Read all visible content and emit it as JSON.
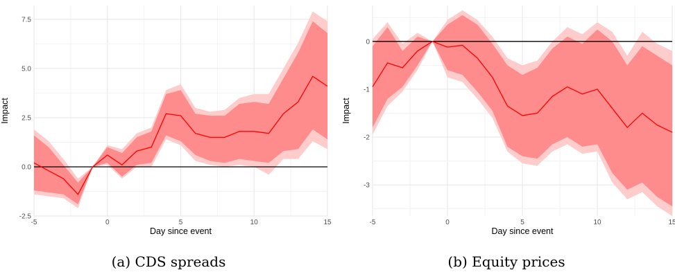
{
  "captions": {
    "a": "(a) CDS spreads",
    "b": "(b) Equity prices"
  },
  "colors": {
    "line": "#ff0000",
    "band_inner": "#ff8c8c",
    "band_outer": "#ffcccc",
    "zero_line": "#000000",
    "grid_major": "#e5e5e5",
    "grid_minor": "#f2f2f2"
  },
  "chart_data": [
    {
      "type": "area",
      "title": "",
      "caption": "(a) CDS spreads",
      "xlabel": "Day since event",
      "ylabel": "Impact",
      "xlim": [
        -5,
        15
      ],
      "ylim": [
        -2.5,
        8.2
      ],
      "xticks": [
        -5,
        0,
        5,
        10,
        15
      ],
      "xtick_labels": [
        "-5",
        "0",
        "5",
        "10",
        "15"
      ],
      "yticks": [
        -2.5,
        0,
        2.5,
        5,
        7.5
      ],
      "ytick_labels": [
        "-2.5",
        "0.0",
        "2.5",
        "5.0",
        "7.5"
      ],
      "reference_line": 0,
      "x": [
        -5,
        -4,
        -3,
        -2,
        -1,
        0,
        1,
        2,
        3,
        4,
        5,
        6,
        7,
        8,
        9,
        10,
        11,
        12,
        13,
        14,
        15
      ],
      "estimate": [
        0.2,
        -0.2,
        -0.6,
        -1.4,
        0.0,
        0.6,
        0.1,
        0.8,
        1.0,
        2.7,
        2.6,
        1.7,
        1.5,
        1.5,
        1.8,
        1.8,
        1.7,
        2.7,
        3.3,
        4.6,
        4.1
      ],
      "inner_band_upper": [
        1.6,
        1.0,
        0.1,
        -0.8,
        0.0,
        1.0,
        0.7,
        1.5,
        1.8,
        3.7,
        3.9,
        2.7,
        2.6,
        2.6,
        3.2,
        3.3,
        3.2,
        4.5,
        5.8,
        7.4,
        6.8
      ],
      "inner_band_lower": [
        -1.2,
        -1.3,
        -1.4,
        -1.9,
        0.0,
        0.2,
        -0.5,
        0.1,
        0.2,
        1.6,
        1.3,
        0.6,
        0.3,
        0.2,
        0.4,
        0.3,
        0.2,
        0.8,
        0.9,
        1.9,
        1.4
      ],
      "outer_band_upper": [
        1.9,
        1.3,
        0.4,
        -0.6,
        0.0,
        1.1,
        0.9,
        1.7,
        2.0,
        3.9,
        4.2,
        3.0,
        2.8,
        2.9,
        3.5,
        3.7,
        3.7,
        5.0,
        6.3,
        7.9,
        7.4
      ],
      "outer_band_lower": [
        -1.4,
        -1.5,
        -1.6,
        -2.1,
        0.0,
        0.1,
        -0.6,
        0.0,
        0.0,
        1.4,
        1.1,
        0.3,
        0.1,
        0.0,
        0.1,
        0.0,
        -0.4,
        0.4,
        0.4,
        1.3,
        0.9
      ]
    },
    {
      "type": "area",
      "title": "",
      "caption": "(b) Equity prices",
      "xlabel": "Day since event",
      "ylabel": "Impact",
      "xlim": [
        -5,
        15
      ],
      "ylim": [
        -3.65,
        0.75
      ],
      "xticks": [
        -5,
        0,
        5,
        10,
        15
      ],
      "xtick_labels": [
        "-5",
        "0",
        "5",
        "10",
        "15"
      ],
      "yticks": [
        -3,
        -2,
        -1,
        0
      ],
      "ytick_labels": [
        "-3",
        "-2",
        "-1",
        "0"
      ],
      "reference_line": 0,
      "x": [
        -5,
        -4,
        -3,
        -2,
        -1,
        0,
        1,
        2,
        3,
        4,
        5,
        6,
        7,
        8,
        9,
        10,
        11,
        12,
        13,
        14,
        15
      ],
      "estimate": [
        -0.95,
        -0.45,
        -0.55,
        -0.2,
        0.0,
        -0.12,
        -0.08,
        -0.35,
        -0.75,
        -1.35,
        -1.55,
        -1.5,
        -1.15,
        -0.95,
        -1.1,
        -1.0,
        -1.4,
        -1.8,
        -1.5,
        -1.75,
        -1.9
      ],
      "inner_band_upper": [
        -0.1,
        0.3,
        -0.2,
        0.1,
        0.0,
        0.35,
        0.55,
        0.35,
        -0.05,
        -0.5,
        -0.7,
        -0.55,
        -0.15,
        0.1,
        -0.05,
        0.25,
        0.0,
        -0.5,
        -0.1,
        -0.3,
        -0.5
      ],
      "inner_band_lower": [
        -1.8,
        -1.2,
        -0.95,
        -0.5,
        0.0,
        -0.6,
        -0.7,
        -1.05,
        -1.45,
        -2.2,
        -2.4,
        -2.45,
        -2.15,
        -2.0,
        -2.2,
        -2.15,
        -2.75,
        -3.1,
        -2.95,
        -3.25,
        -3.45
      ],
      "outer_band_upper": [
        0.05,
        0.4,
        -0.05,
        0.18,
        0.0,
        0.45,
        0.65,
        0.45,
        0.1,
        -0.35,
        -0.5,
        -0.4,
        0.0,
        0.3,
        0.15,
        0.4,
        0.2,
        -0.3,
        0.2,
        -0.05,
        -0.2
      ],
      "outer_band_lower": [
        -1.95,
        -1.35,
        -1.05,
        -0.6,
        0.0,
        -0.75,
        -0.85,
        -1.2,
        -1.6,
        -2.3,
        -2.55,
        -2.6,
        -2.3,
        -2.15,
        -2.35,
        -2.3,
        -2.95,
        -3.3,
        -3.15,
        -3.45,
        -3.65
      ]
    }
  ]
}
